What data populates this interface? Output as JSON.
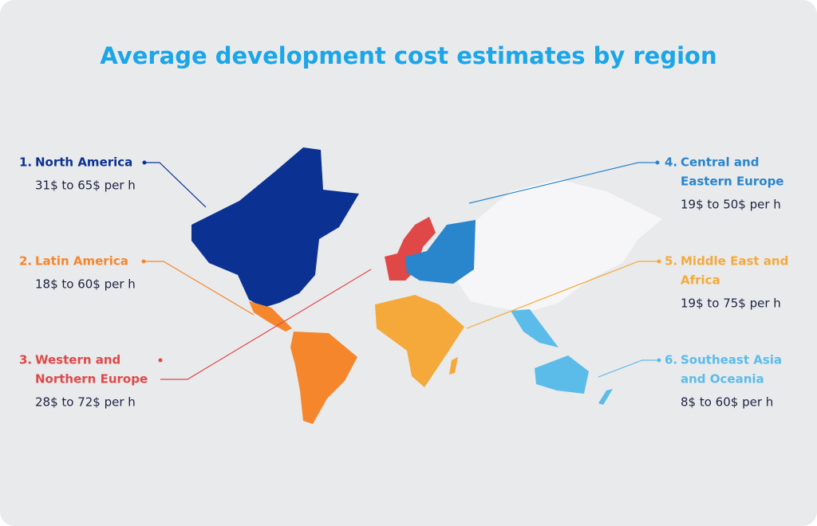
{
  "title": "Average development cost estimates by region",
  "regions": [
    {
      "number": "1.",
      "name": [
        "North America"
      ],
      "cost": "31$ to 65$ per h",
      "color": "#0b3192"
    },
    {
      "number": "2.",
      "name": [
        "Latin America"
      ],
      "cost": "18$ to 60$ per h",
      "color": "#f5862c"
    },
    {
      "number": "3.",
      "name": [
        "Western and",
        "Northern Europe"
      ],
      "cost": "28$ to 72$ per h",
      "color": "#e04848"
    },
    {
      "number": "4.",
      "name": [
        "Central and",
        "Eastern Europe"
      ],
      "cost": "19$ to 50$ per h",
      "color": "#2985cc"
    },
    {
      "number": "5.",
      "name": [
        "Middle East and",
        "Africa"
      ],
      "cost": "19$ to 75$ per h",
      "color": "#f5a93b"
    },
    {
      "number": "6.",
      "name": [
        "Southeast Asia",
        "and Oceania"
      ],
      "cost": "8$ to 60$ per h",
      "color": "#5bbcea"
    }
  ]
}
